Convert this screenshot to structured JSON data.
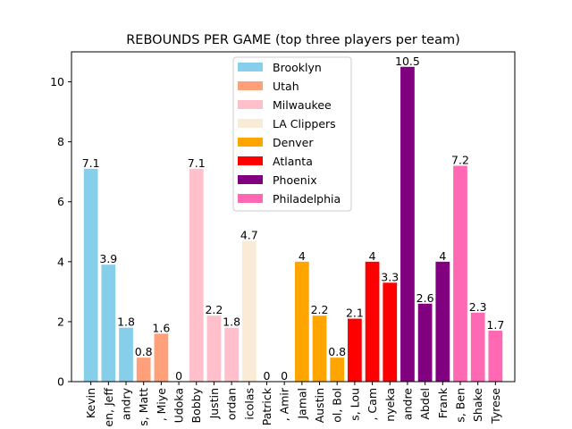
{
  "chart_data": {
    "type": "bar",
    "title": "REBOUNDS PER GAME (top three players per team)",
    "xlabel": "",
    "ylabel": "",
    "ylim": [
      0,
      11
    ],
    "yticks": [
      0,
      2,
      4,
      6,
      8,
      10
    ],
    "grid": false,
    "legend_position": "upper-center",
    "categories": [
      "Kevin",
      "en, Jeff",
      "andry",
      "s, Matt",
      ", Miye",
      "Udoka",
      "Bobby",
      "Justin",
      "ordan",
      "icolas",
      "Patrick",
      ", Amir",
      "Jamal",
      "Austin",
      "ol, Bol",
      "s, Lou",
      ", Cam",
      "nyeka",
      "andre",
      "Abdel",
      "Frank",
      "s, Ben",
      "Shake",
      "Tyrese"
    ],
    "values": [
      7.1,
      3.9,
      1.8,
      0.8,
      1.6,
      0,
      7.1,
      2.2,
      1.8,
      4.7,
      0,
      0,
      4,
      2.2,
      0.8,
      2.1,
      4,
      3.3,
      10.5,
      2.6,
      4,
      7.2,
      2.3,
      1.7
    ],
    "value_labels": [
      "7.1",
      "3.9",
      "1.8",
      "0.8",
      "1.6",
      "0",
      "7.1",
      "2.2",
      "1.8",
      "4.7",
      "0",
      "0",
      "4",
      "2.2",
      "0.8",
      "2.1",
      "4",
      "3.3",
      "10.5",
      "2.6",
      "4",
      "7.2",
      "2.3",
      "1.7"
    ],
    "series": [
      {
        "name": "Brooklyn",
        "color": "#87ceeb",
        "indices": [
          0,
          1,
          2
        ]
      },
      {
        "name": "Utah",
        "color": "#ffa07a",
        "indices": [
          3,
          4,
          5
        ]
      },
      {
        "name": "Milwaukee",
        "color": "#ffc0cb",
        "indices": [
          6,
          7,
          8
        ]
      },
      {
        "name": "LA Clippers",
        "color": "#faebd7",
        "indices": [
          9,
          10,
          11
        ]
      },
      {
        "name": "Denver",
        "color": "#ffa500",
        "indices": [
          12,
          13,
          14
        ]
      },
      {
        "name": "Atlanta",
        "color": "#ff0000",
        "indices": [
          15,
          16,
          17
        ]
      },
      {
        "name": "Phoenix",
        "color": "#800080",
        "indices": [
          18,
          19,
          20
        ]
      },
      {
        "name": "Philadelphia",
        "color": "#ff69b4",
        "indices": [
          21,
          22,
          23
        ]
      }
    ]
  }
}
